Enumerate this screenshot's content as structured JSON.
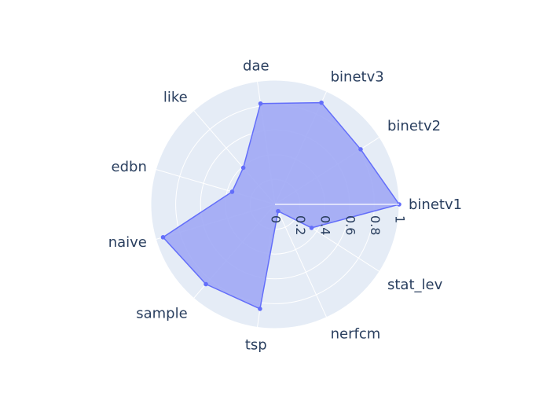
{
  "chart_data": {
    "type": "radar",
    "title": "",
    "radial_axis": {
      "range": [
        0,
        1
      ],
      "ticks": [
        0,
        0.2,
        0.4,
        0.6,
        0.8,
        1
      ]
    },
    "categories": [
      "binetv1",
      "binetv2",
      "binetv3",
      "dae",
      "like",
      "edbn",
      "naive",
      "sample",
      "tsp",
      "nerfcm",
      "stat_lev",
      "ticks_placeholder_none"
    ],
    "series": [
      {
        "name": "trace 0",
        "values": [
          1.0,
          0.82,
          0.9,
          0.82,
          0.39,
          0.36,
          0.94,
          0.85,
          0.85,
          0.06,
          0.35,
          0.0
        ],
        "line_color": "#636efa",
        "fill_color": "#a0a8f5"
      }
    ],
    "visible_categories": [
      "binetv1",
      "binetv2",
      "binetv3",
      "dae",
      "like",
      "edbn",
      "naive",
      "sample",
      "tsp",
      "nerfcm",
      "stat_lev"
    ]
  }
}
